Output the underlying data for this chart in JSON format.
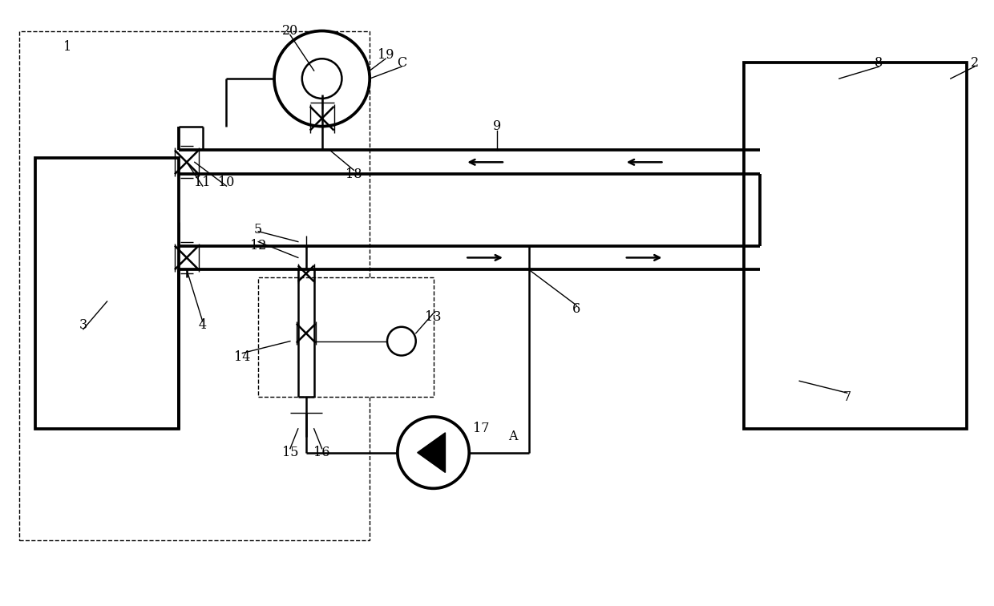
{
  "bg_color": "#ffffff",
  "lc": "#000000",
  "lw": 1.8,
  "tlw": 1.0,
  "fig_w": 12.4,
  "fig_h": 7.56,
  "xlim": [
    0,
    124
  ],
  "ylim": [
    0,
    75.6
  ]
}
